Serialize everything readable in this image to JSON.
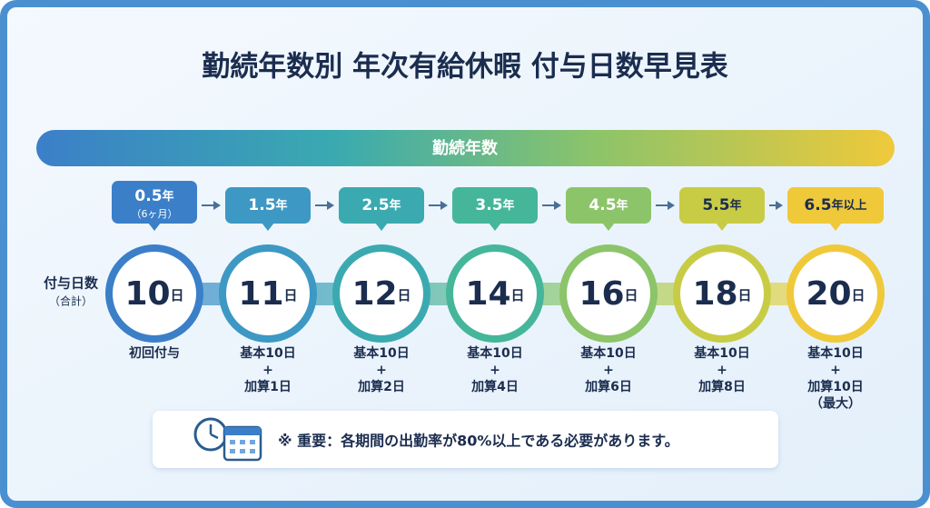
{
  "title": "勤続年数別 年次有給休暇 付与日数早見表",
  "header": "勤続年数",
  "row_label": {
    "main": "付与日数",
    "sub": "（合計）"
  },
  "columns": [
    {
      "years": "0.5",
      "unit": "年",
      "sub": "（6ヶ月）",
      "days": "10",
      "days_unit": "日",
      "notes": [
        "初回付与"
      ]
    },
    {
      "years": "1.5",
      "unit": "年",
      "days": "11",
      "days_unit": "日",
      "notes": [
        "基本10日",
        "+",
        "加算1日"
      ]
    },
    {
      "years": "2.5",
      "unit": "年",
      "days": "12",
      "days_unit": "日",
      "notes": [
        "基本10日",
        "+",
        "加算2日"
      ]
    },
    {
      "years": "3.5",
      "unit": "年",
      "days": "14",
      "days_unit": "日",
      "notes": [
        "基本10日",
        "+",
        "加算4日"
      ]
    },
    {
      "years": "4.5",
      "unit": "年",
      "days": "16",
      "days_unit": "日",
      "notes": [
        "基本10日",
        "+",
        "加算6日"
      ]
    },
    {
      "years": "5.5",
      "unit": "年",
      "days": "18",
      "days_unit": "日",
      "notes": [
        "基本10日",
        "+",
        "加算8日"
      ]
    },
    {
      "years": "6.5",
      "unit": "年以上",
      "days": "20",
      "days_unit": "日",
      "notes": [
        "基本10日",
        "+",
        "加算10日",
        "（最大）"
      ]
    }
  ],
  "note": "※ 重要：各期間の出勤率が80%以上である必要があります。"
}
